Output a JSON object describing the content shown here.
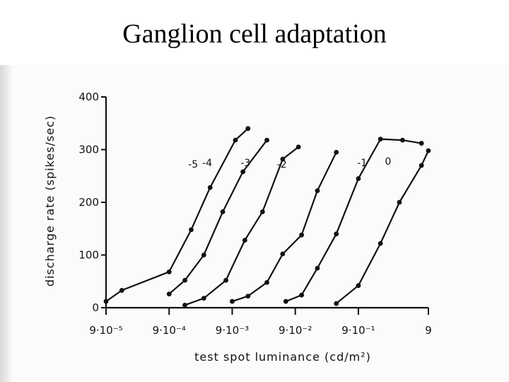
{
  "slide": {
    "title": "Ganglion cell adaptation"
  },
  "chart_data": {
    "type": "line",
    "title": "",
    "xlabel": "test spot luminance (cd/m²)",
    "ylabel": "discharge rate (spikes/sec)",
    "ylim": [
      0,
      400
    ],
    "yticks": [
      0,
      100,
      200,
      300,
      400
    ],
    "xscale": "log",
    "xlim_log10": [
      -5.05,
      0.06
    ],
    "xticks": [
      {
        "log": -5.05,
        "label": "9·10⁻⁵"
      },
      {
        "log": -4.05,
        "label": "9·10⁻⁴"
      },
      {
        "log": -3.05,
        "label": "9·10⁻³"
      },
      {
        "log": -2.05,
        "label": "9·10⁻²"
      },
      {
        "log": -1.05,
        "label": "9·10⁻¹"
      },
      {
        "log": 0.06,
        "label": "9"
      }
    ],
    "grid": false,
    "legend": "none",
    "line_color": "#111111",
    "series": [
      {
        "name": "-5",
        "x_log10": [
          -5.05,
          -4.8,
          -4.05,
          -3.7,
          -3.4,
          -3.0,
          -2.8
        ],
        "y": [
          12,
          33,
          68,
          148,
          228,
          318,
          340
        ]
      },
      {
        "name": "-4",
        "x_log10": [
          -4.05,
          -3.8,
          -3.5,
          -3.2,
          -2.88,
          -2.5
        ],
        "y": [
          26,
          52,
          100,
          182,
          258,
          318
        ]
      },
      {
        "name": "-3",
        "x_log10": [
          -3.8,
          -3.5,
          -3.15,
          -2.85,
          -2.57,
          -2.25,
          -2.0
        ],
        "y": [
          5,
          18,
          52,
          128,
          182,
          282,
          305
        ]
      },
      {
        "name": "-2",
        "x_log10": [
          -3.05,
          -2.8,
          -2.5,
          -2.25,
          -1.95,
          -1.7,
          -1.4
        ],
        "y": [
          12,
          22,
          48,
          102,
          138,
          222,
          295
        ]
      },
      {
        "name": "-1",
        "x_log10": [
          -2.2,
          -1.95,
          -1.7,
          -1.4,
          -1.05,
          -0.7,
          -0.35,
          -0.05
        ],
        "y": [
          12,
          24,
          75,
          140,
          245,
          320,
          318,
          312
        ]
      },
      {
        "name": "0",
        "x_log10": [
          -1.4,
          -1.05,
          -0.7,
          -0.4,
          -0.05,
          0.06
        ],
        "y": [
          8,
          42,
          122,
          200,
          270,
          298
        ]
      }
    ]
  }
}
